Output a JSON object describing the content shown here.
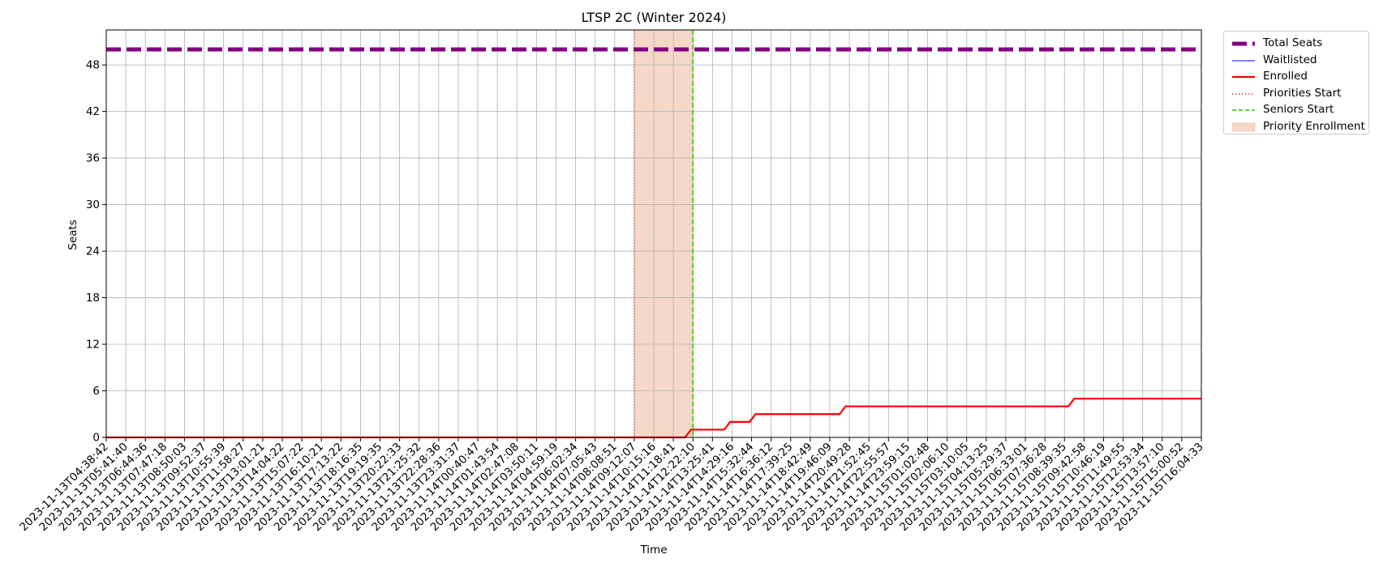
{
  "chart_data": {
    "type": "line",
    "title": "LTSP 2C (Winter 2024)",
    "xlabel": "Time",
    "ylabel": "Seats",
    "ylim": [
      0,
      52.5
    ],
    "yticks": [
      0,
      6,
      12,
      18,
      24,
      30,
      36,
      42,
      48
    ],
    "grid": true,
    "legend_position": "outside-top-right",
    "x_ticks": [
      "2023-11-13T04:38:42",
      "2023-11-13T05:41:40",
      "2023-11-13T06:44:36",
      "2023-11-13T07:47:18",
      "2023-11-13T08:50:03",
      "2023-11-13T09:52:37",
      "2023-11-13T10:55:39",
      "2023-11-13T11:58:27",
      "2023-11-13T13:01:21",
      "2023-11-13T14:04:22",
      "2023-11-13T15:07:22",
      "2023-11-13T16:10:21",
      "2023-11-13T17:13:22",
      "2023-11-13T18:16:35",
      "2023-11-13T19:19:35",
      "2023-11-13T20:22:33",
      "2023-11-13T21:25:32",
      "2023-11-13T22:28:36",
      "2023-11-13T23:31:37",
      "2023-11-14T00:40:47",
      "2023-11-14T01:43:54",
      "2023-11-14T02:47:08",
      "2023-11-14T03:50:11",
      "2023-11-14T04:59:19",
      "2023-11-14T06:02:34",
      "2023-11-14T07:05:43",
      "2023-11-14T08:08:51",
      "2023-11-14T09:12:07",
      "2023-11-14T10:15:16",
      "2023-11-14T11:18:41",
      "2023-11-14T12:22:10",
      "2023-11-14T13:25:41",
      "2023-11-14T14:29:16",
      "2023-11-14T15:32:44",
      "2023-11-14T16:36:12",
      "2023-11-14T17:39:25",
      "2023-11-14T18:42:49",
      "2023-11-14T19:46:09",
      "2023-11-14T20:49:28",
      "2023-11-14T21:52:45",
      "2023-11-14T22:55:57",
      "2023-11-14T23:59:15",
      "2023-11-15T01:02:48",
      "2023-11-15T02:06:10",
      "2023-11-15T03:10:05",
      "2023-11-15T04:13:25",
      "2023-11-15T05:29:37",
      "2023-11-15T06:33:01",
      "2023-11-15T07:36:28",
      "2023-11-15T08:39:35",
      "2023-11-15T09:42:58",
      "2023-11-15T10:46:19",
      "2023-11-15T11:49:55",
      "2023-11-15T12:53:34",
      "2023-11-15T13:57:10",
      "2023-11-15T15:00:52",
      "2023-11-15T16:04:33"
    ],
    "series": [
      {
        "name": "Total Seats",
        "color": "#800080",
        "style": "dashed-thick",
        "constant": 50
      },
      {
        "name": "Waitlisted",
        "color": "#0000ff",
        "style": "solid-thin",
        "constant": 0
      },
      {
        "name": "Enrolled",
        "color": "#ff0000",
        "style": "solid",
        "points": [
          [
            0,
            0
          ],
          [
            29.6,
            0
          ],
          [
            29.9,
            1
          ],
          [
            31.6,
            1
          ],
          [
            31.9,
            2
          ],
          [
            32.9,
            2
          ],
          [
            33.2,
            3
          ],
          [
            37.5,
            3
          ],
          [
            37.8,
            4
          ],
          [
            49.2,
            4
          ],
          [
            49.5,
            5
          ],
          [
            56,
            5
          ]
        ]
      }
    ],
    "markers": [
      {
        "name": "Priorities Start",
        "color": "#e0402a",
        "style": "dotted",
        "at": "2023-11-14T09:12:07"
      },
      {
        "name": "Seniors Start",
        "color": "#22cc00",
        "style": "dashed",
        "at": "2023-11-14T12:22:10"
      }
    ],
    "spans": [
      {
        "name": "Priority Enrollment",
        "color": "#f6d8c8",
        "from": "2023-11-14T09:12:07",
        "to": "2023-11-14T12:22:10"
      }
    ]
  }
}
